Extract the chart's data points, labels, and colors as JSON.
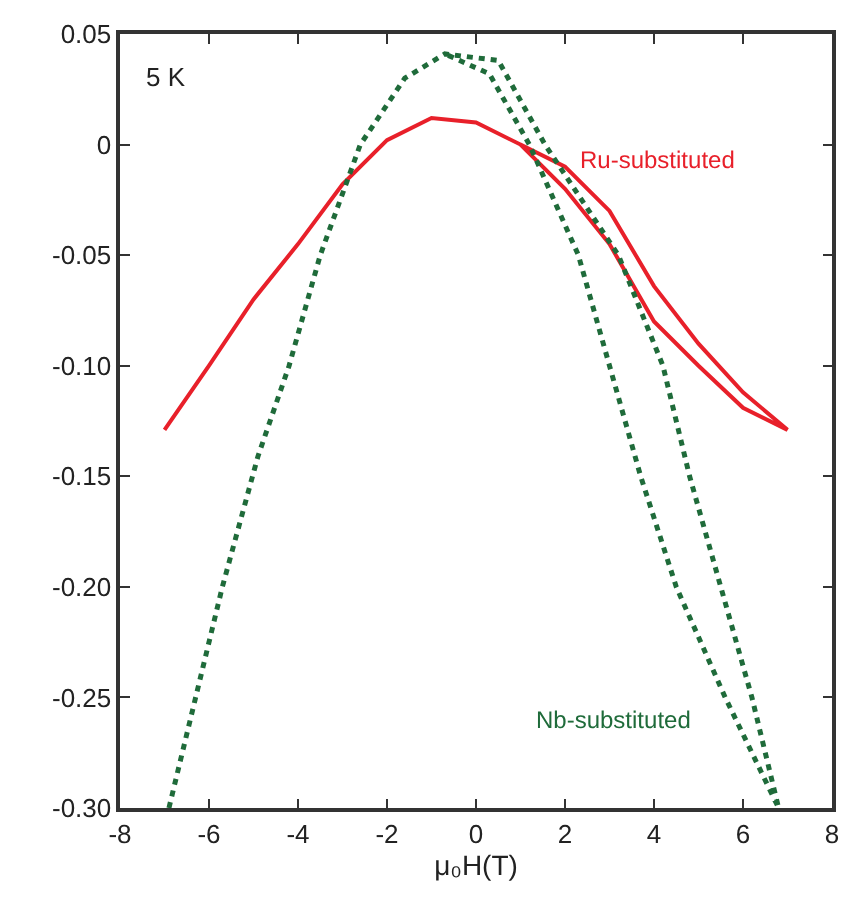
{
  "chart_data": {
    "type": "line",
    "xlabel": "μ₀H(T)",
    "series": [
      {
        "name": "Ru-substituted",
        "color": "#e8202a",
        "line_style": "solid",
        "x": [
          -7,
          -6,
          -5,
          -4,
          -3,
          -2,
          -1,
          0,
          1,
          2,
          3,
          4,
          5,
          6,
          7,
          6,
          5,
          4,
          3,
          2,
          1
        ],
        "values": [
          -0.129,
          -0.1,
          -0.07,
          -0.045,
          -0.018,
          0.002,
          0.012,
          0.01,
          0.0,
          -0.02,
          -0.045,
          -0.08,
          -0.1,
          -0.119,
          -0.129,
          -0.112,
          -0.09,
          -0.064,
          -0.03,
          -0.01,
          0.0
        ]
      },
      {
        "name": "Nb-substituted",
        "color": "#1f6b3a",
        "line_style": "dotted",
        "x": [
          -6.9,
          -6.3,
          -5.7,
          -4.9,
          -4.2,
          -3.5,
          -2.6,
          -1.6,
          -0.7,
          0.5,
          1.55,
          3.2,
          4.2,
          4.8,
          5.5,
          6.2,
          6.8,
          5.6,
          4.5,
          3.7,
          3.0,
          2.3,
          1.2,
          0.3,
          -0.7
        ],
        "values": [
          -0.3,
          -0.25,
          -0.2,
          -0.141,
          -0.1,
          -0.05,
          0.0,
          0.03,
          0.041,
          0.038,
          0.0,
          -0.05,
          -0.1,
          -0.15,
          -0.2,
          -0.25,
          -0.3,
          -0.25,
          -0.2,
          -0.15,
          -0.1,
          -0.05,
          0.0,
          0.032,
          0.041
        ]
      }
    ],
    "annotations": [
      "5 K"
    ],
    "xlim": [
      -8,
      8
    ],
    "xticks": [
      -8,
      -6,
      -4,
      -2,
      0,
      2,
      4,
      6,
      8
    ],
    "ylim": [
      -0.3,
      0.05
    ],
    "yticks": [
      {
        "value": -0.3,
        "label": "-0.30"
      },
      {
        "value": -0.25,
        "label": "-0.25"
      },
      {
        "value": -0.2,
        "label": "-0.20"
      },
      {
        "value": -0.15,
        "label": "-0.15"
      },
      {
        "value": -0.1,
        "label": "-0.10"
      },
      {
        "value": -0.05,
        "label": "-0.05"
      },
      0,
      0.05
    ],
    "legend": false,
    "marker": "none"
  }
}
